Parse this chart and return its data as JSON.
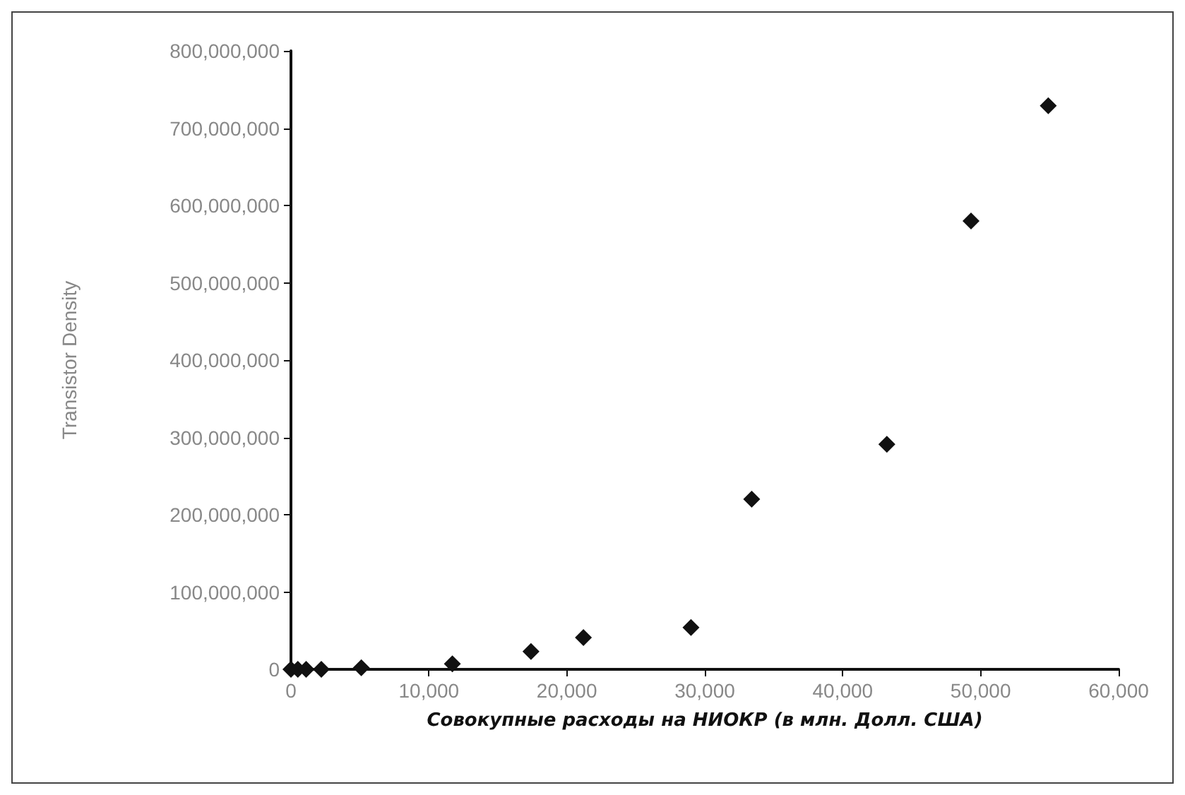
{
  "chart_data": {
    "type": "scatter",
    "xlabel": "Совокупные расходы на НИОКР (в млн. Долл. США)",
    "ylabel": "Transistor Density",
    "x": [
      0,
      500,
      1100,
      2200,
      5100,
      11700,
      17400,
      21200,
      29000,
      33400,
      43200,
      49300,
      54900
    ],
    "values": [
      0,
      0,
      0,
      0,
      2000000,
      7000000,
      23000000,
      41000000,
      54000000,
      220000000,
      291000000,
      580000000,
      729000000
    ],
    "color": "#111111",
    "marker": "diamond",
    "grid": false,
    "xlim": [
      0,
      60000
    ],
    "xticks": [
      0,
      {
        "value": 10000,
        "label": "10,000"
      },
      {
        "value": 20000,
        "label": "20,000"
      },
      {
        "value": 30000,
        "label": "30,000"
      },
      {
        "value": 40000,
        "label": "40,000"
      },
      {
        "value": 50000,
        "label": "50,000"
      },
      {
        "value": 60000,
        "label": "60,000"
      }
    ],
    "ylim": [
      0,
      800000000
    ],
    "yticks": [
      0,
      {
        "value": 100000000,
        "label": "100,000,000"
      },
      {
        "value": 200000000,
        "label": "200,000,000"
      },
      {
        "value": 300000000,
        "label": "300,000,000"
      },
      {
        "value": 400000000,
        "label": "400,000,000"
      },
      {
        "value": 500000000,
        "label": "500,000,000"
      },
      {
        "value": 600000000,
        "label": "600,000,000"
      },
      {
        "value": 700000000,
        "label": "700,000,000"
      },
      {
        "value": 800000000,
        "label": "800,000,000"
      }
    ]
  }
}
